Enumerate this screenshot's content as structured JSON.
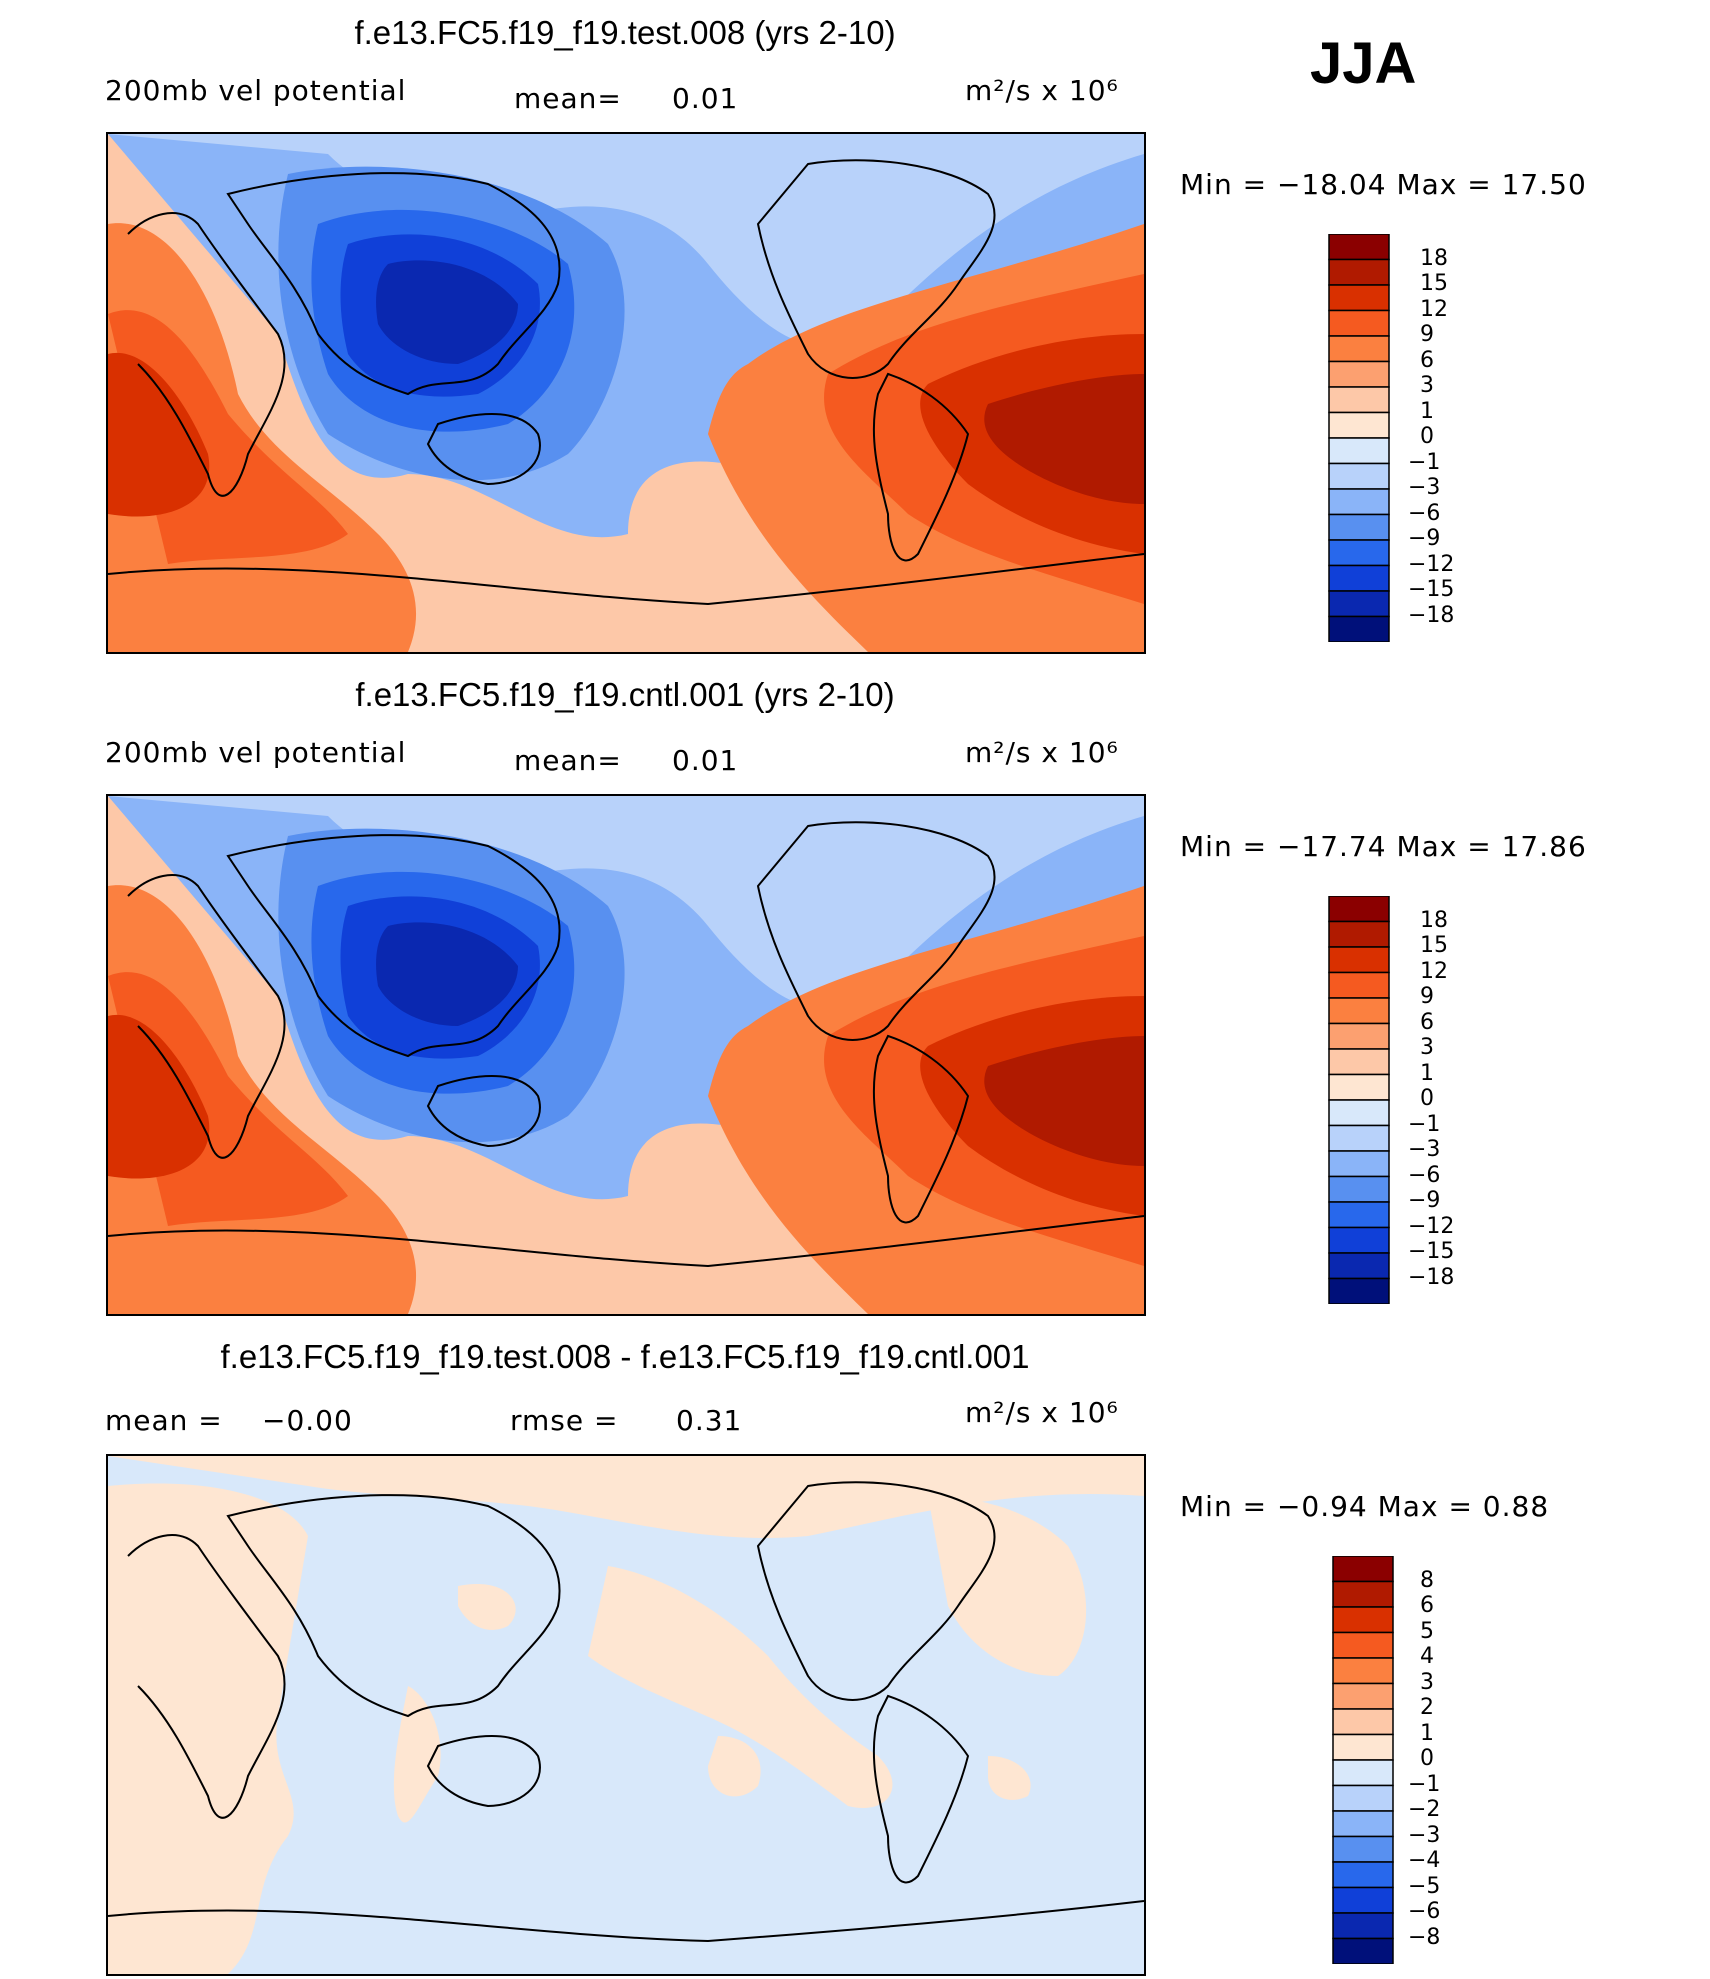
{
  "season": "JJA",
  "panels": [
    {
      "id": "test",
      "title": "f.e13.FC5.f19_f19.test.008 (yrs 2-10)",
      "left_label": "200mb vel potential",
      "mid_label": "mean=",
      "mid_value": "0.01",
      "right_label": "m²/s x 10⁶",
      "minmax": "Min = −18.04  Max =   17.50",
      "levels": [
        "18",
        "15",
        "12",
        "9",
        "6",
        "3",
        "1",
        "0",
        "−1",
        "−3",
        "−6",
        "−9",
        "−12",
        "−15",
        "−18"
      ]
    },
    {
      "id": "cntl",
      "title": "f.e13.FC5.f19_f19.cntl.001 (yrs 2-10)",
      "left_label": "200mb vel potential",
      "mid_label": "mean=",
      "mid_value": "0.01",
      "right_label": "m²/s x 10⁶",
      "minmax": "Min = −17.74  Max =   17.86",
      "levels": [
        "18",
        "15",
        "12",
        "9",
        "6",
        "3",
        "1",
        "0",
        "−1",
        "−3",
        "−6",
        "−9",
        "−12",
        "−15",
        "−18"
      ]
    },
    {
      "id": "diff",
      "title": "f.e13.FC5.f19_f19.test.008 - f.e13.FC5.f19_f19.cntl.001",
      "left_label": "mean =",
      "left_value": "−0.00",
      "mid_label": "rmse =",
      "mid_value": "0.31",
      "right_label": "m²/s x 10⁶",
      "minmax": "Min =    −0.94  Max =     0.88",
      "levels": [
        "8",
        "6",
        "5",
        "4",
        "3",
        "2",
        "1",
        "0",
        "−1",
        "−2",
        "−3",
        "−4",
        "−5",
        "−6",
        "−8"
      ]
    }
  ],
  "colors": {
    "scale": [
      "#8b0000",
      "#b01a00",
      "#d93000",
      "#f55a20",
      "#fb8040",
      "#fca070",
      "#fdc8a8",
      "#fee6d2",
      "#d8e8fa",
      "#b8d2fa",
      "#8ab4f8",
      "#5890f0",
      "#2868ec",
      "#1040d8",
      "#0a28b0",
      "#00107a"
    ]
  }
}
